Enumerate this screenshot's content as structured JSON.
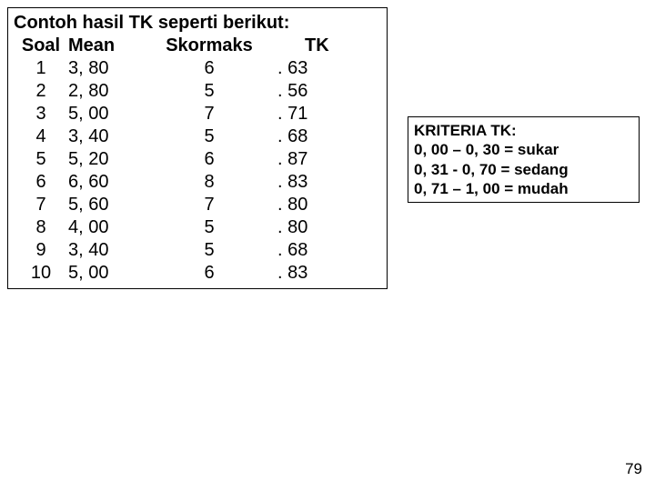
{
  "page_number": "79",
  "main": {
    "title": "Contoh hasil TK seperti berikut:",
    "headers": {
      "soal": "Soal",
      "mean": "Mean",
      "skormaks": "Skormaks",
      "tk": "TK"
    },
    "rows": [
      {
        "soal": "1",
        "mean": "3, 80",
        "skormaks": "6",
        "tk": ". 63"
      },
      {
        "soal": "2",
        "mean": "2, 80",
        "skormaks": "5",
        "tk": ". 56"
      },
      {
        "soal": "3",
        "mean": "5, 00",
        "skormaks": "7",
        "tk": ". 71"
      },
      {
        "soal": "4",
        "mean": "3, 40",
        "skormaks": "5",
        "tk": ". 68"
      },
      {
        "soal": "5",
        "mean": "5, 20",
        "skormaks": "6",
        "tk": ". 87"
      },
      {
        "soal": "6",
        "mean": "6, 60",
        "skormaks": "8",
        "tk": ". 83"
      },
      {
        "soal": "7",
        "mean": "5, 60",
        "skormaks": "7",
        "tk": ". 80"
      },
      {
        "soal": "8",
        "mean": "4, 00",
        "skormaks": "5",
        "tk": ". 80"
      },
      {
        "soal": "9",
        "mean": "3, 40",
        "skormaks": "5",
        "tk": ". 68"
      },
      {
        "soal": "10",
        "mean": "5, 00",
        "skormaks": "6",
        "tk": ". 83"
      }
    ]
  },
  "criteria": {
    "title": "KRITERIA TK:",
    "lines": [
      "0, 00 – 0, 30 = sukar",
      "0, 31  - 0, 70 = sedang",
      "0, 71 – 1, 00 = mudah"
    ]
  },
  "colors": {
    "background": "#ffffff",
    "text": "#000000",
    "border": "#000000"
  }
}
